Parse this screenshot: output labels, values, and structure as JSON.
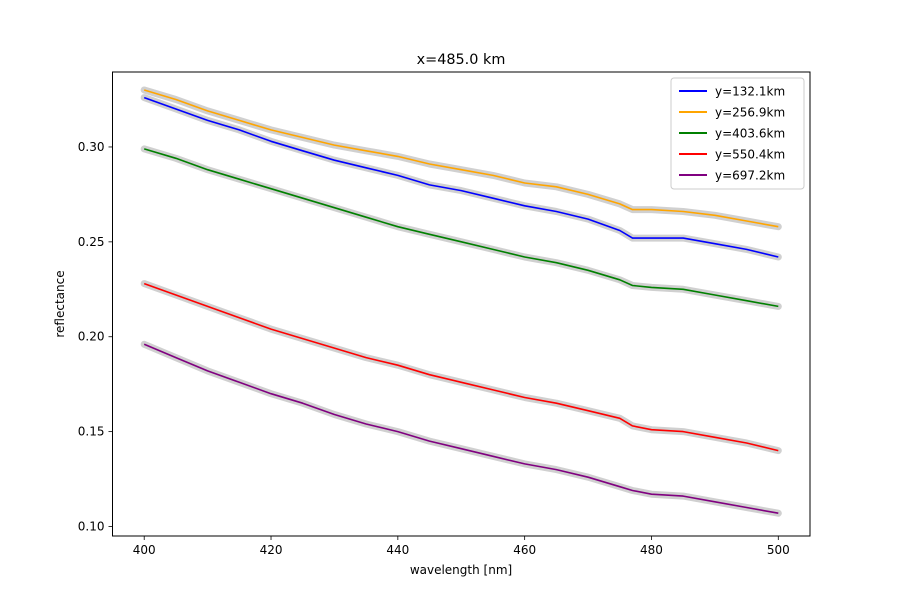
{
  "chart_data": {
    "type": "line",
    "title": "x=485.0 km",
    "xlabel": "wavelength [nm]",
    "ylabel": "reflectance",
    "xlim": [
      395,
      505
    ],
    "ylim": [
      0.095,
      0.3395
    ],
    "x_ticks": [
      400,
      420,
      440,
      460,
      480,
      500
    ],
    "x_tick_labels": [
      "400",
      "420",
      "440",
      "460",
      "480",
      "500"
    ],
    "y_ticks": [
      0.1,
      0.15,
      0.2,
      0.25,
      0.3
    ],
    "y_tick_labels": [
      "0.10",
      "0.15",
      "0.20",
      "0.25",
      "0.30"
    ],
    "grid": false,
    "legend_position": "top-right",
    "band_color": "#c0c0c0",
    "x": [
      400,
      405,
      410,
      415,
      420,
      425,
      430,
      435,
      440,
      445,
      450,
      455,
      460,
      465,
      470,
      475,
      477,
      480,
      485,
      490,
      495,
      500
    ],
    "series": [
      {
        "name": "y=132.1km",
        "color": "#0000ff",
        "values": [
          0.326,
          0.32,
          0.314,
          0.309,
          0.303,
          0.298,
          0.293,
          0.289,
          0.285,
          0.28,
          0.277,
          0.273,
          0.269,
          0.266,
          0.262,
          0.256,
          0.252,
          0.252,
          0.252,
          0.249,
          0.246,
          0.242
        ]
      },
      {
        "name": "y=256.9km",
        "color": "#ffa500",
        "values": [
          0.33,
          0.325,
          0.319,
          0.314,
          0.309,
          0.305,
          0.301,
          0.298,
          0.295,
          0.291,
          0.288,
          0.285,
          0.281,
          0.279,
          0.275,
          0.27,
          0.267,
          0.267,
          0.266,
          0.264,
          0.261,
          0.258
        ]
      },
      {
        "name": "y=403.6km",
        "color": "#008000",
        "values": [
          0.299,
          0.294,
          0.288,
          0.283,
          0.278,
          0.273,
          0.268,
          0.263,
          0.258,
          0.254,
          0.25,
          0.246,
          0.242,
          0.239,
          0.235,
          0.23,
          0.227,
          0.226,
          0.225,
          0.222,
          0.219,
          0.216
        ]
      },
      {
        "name": "y=550.4km",
        "color": "#ff0000",
        "values": [
          0.228,
          0.222,
          0.216,
          0.21,
          0.204,
          0.199,
          0.194,
          0.189,
          0.185,
          0.18,
          0.176,
          0.172,
          0.168,
          0.165,
          0.161,
          0.157,
          0.153,
          0.151,
          0.15,
          0.147,
          0.144,
          0.14
        ]
      },
      {
        "name": "y=697.2km",
        "color": "#800080",
        "values": [
          0.196,
          0.189,
          0.182,
          0.176,
          0.17,
          0.165,
          0.159,
          0.154,
          0.15,
          0.145,
          0.141,
          0.137,
          0.133,
          0.13,
          0.126,
          0.121,
          0.119,
          0.117,
          0.116,
          0.113,
          0.11,
          0.107
        ]
      }
    ]
  }
}
